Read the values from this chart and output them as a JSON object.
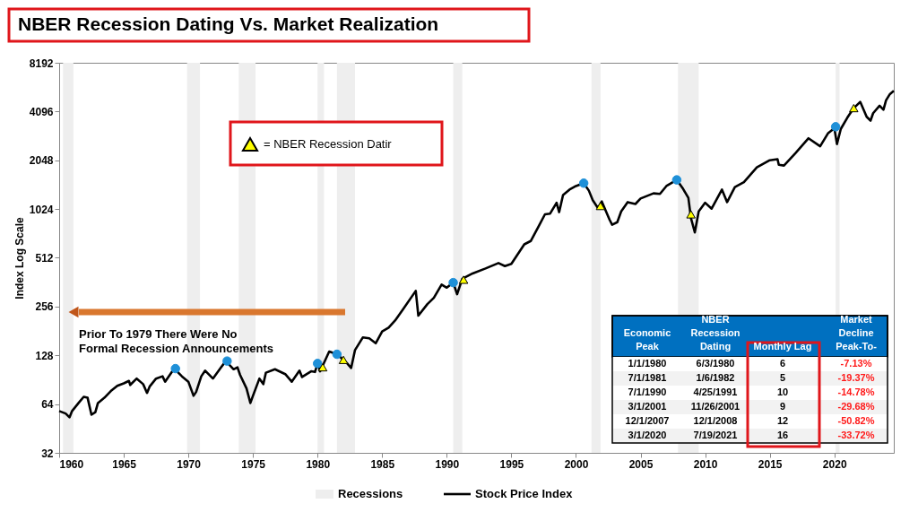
{
  "chart_data": {
    "type": "line",
    "title": "NBER Recession Dating Vs. Market Realization",
    "ylabel": "Index Log Scale",
    "log": "y",
    "grid": false,
    "legend": "bottom",
    "xlim": [
      1960,
      2024.6
    ],
    "xticks": [
      1960,
      1965,
      1970,
      1975,
      1980,
      1985,
      1990,
      1995,
      2000,
      2005,
      2010,
      2015,
      2020
    ],
    "ylim": [
      32,
      8192
    ],
    "yticks": [
      32,
      64,
      128,
      256,
      512,
      1024,
      2048,
      4096,
      8192
    ],
    "bands": [
      {
        "axis": "x",
        "from": 1960.3,
        "to": 1961.1,
        "label": "Recessions",
        "color": "#eeeeee"
      },
      {
        "axis": "x",
        "from": 1969.9,
        "to": 1970.9,
        "color": "#eeeeee"
      },
      {
        "axis": "x",
        "from": 1973.9,
        "to": 1975.2,
        "color": "#eeeeee"
      },
      {
        "axis": "x",
        "from": 1980.0,
        "to": 1980.5,
        "color": "#eeeeee"
      },
      {
        "axis": "x",
        "from": 1981.5,
        "to": 1982.9,
        "color": "#eeeeee"
      },
      {
        "axis": "x",
        "from": 1990.5,
        "to": 1991.2,
        "color": "#eeeeee"
      },
      {
        "axis": "x",
        "from": 2001.2,
        "to": 2001.9,
        "color": "#eeeeee"
      },
      {
        "axis": "x",
        "from": 2007.9,
        "to": 2009.5,
        "color": "#eeeeee"
      },
      {
        "axis": "x",
        "from": 2020.1,
        "to": 2020.4,
        "color": "#eeeeee"
      }
    ],
    "series": [
      {
        "name": "Stock Price Index",
        "color": "#000000",
        "marker": "none",
        "line_style": "solid",
        "x": [
          1960.0,
          1960.5,
          1960.8,
          1961.0,
          1961.5,
          1961.9,
          1962.2,
          1962.5,
          1962.8,
          1963.0,
          1963.5,
          1964.0,
          1964.5,
          1965.0,
          1965.4,
          1965.5,
          1966.0,
          1966.5,
          1966.8,
          1967.0,
          1967.5,
          1968.0,
          1968.2,
          1968.9,
          1969.5,
          1970.0,
          1970.4,
          1970.6,
          1971.0,
          1971.3,
          1971.9,
          1972.5,
          1972.9,
          1973.5,
          1973.8,
          1974.0,
          1974.5,
          1974.8,
          1975.0,
          1975.5,
          1975.8,
          1976.0,
          1976.7,
          1977.5,
          1978.0,
          1978.6,
          1978.8,
          1979.5,
          1979.8,
          1980.0,
          1980.2,
          1980.9,
          1981.5,
          1981.9,
          1982.3,
          1982.6,
          1982.9,
          1983.5,
          1984.0,
          1984.5,
          1985.0,
          1985.5,
          1986.0,
          1986.6,
          1987.6,
          1987.8,
          1988.5,
          1989.0,
          1989.6,
          1990.0,
          1990.5,
          1990.8,
          1991.2,
          1992.0,
          1993.0,
          1994.0,
          1994.5,
          1995.0,
          1996.0,
          1996.5,
          1997.0,
          1997.6,
          1998.0,
          1998.5,
          1998.7,
          1999.0,
          1999.5,
          2000.0,
          2000.6,
          2001.0,
          2001.3,
          2001.7,
          2002.0,
          2002.6,
          2002.8,
          2003.2,
          2003.5,
          2004.0,
          2004.6,
          2005.0,
          2006.0,
          2006.5,
          2007.0,
          2007.8,
          2008.3,
          2008.7,
          2008.9,
          2009.2,
          2009.5,
          2010.0,
          2010.5,
          2011.3,
          2011.7,
          2012.3,
          2013.0,
          2014.0,
          2015.0,
          2015.6,
          2015.7,
          2016.1,
          2017.0,
          2018.0,
          2018.9,
          2019.5,
          2020.0,
          2020.2,
          2020.5,
          2021.0,
          2021.5,
          2022.0,
          2022.5,
          2022.8,
          2023.0,
          2023.5,
          2023.8,
          2024.0,
          2024.3,
          2024.6
        ],
        "values": [
          58,
          56,
          53,
          58,
          65,
          71,
          70,
          55,
          57,
          65,
          70,
          77,
          83,
          86,
          89,
          84,
          92,
          85,
          75,
          82,
          92,
          95,
          88,
          106,
          95,
          88,
          72,
          76,
          95,
          103,
          92,
          107,
          118,
          105,
          108,
          97,
          80,
          65,
          72,
          92,
          85,
          100,
          105,
          98,
          88,
          103,
          94,
          102,
          101,
          114,
          102,
          135,
          130,
          122,
          114,
          107,
          138,
          165,
          163,
          152,
          180,
          190,
          210,
          245,
          320,
          225,
          265,
          290,
          350,
          335,
          360,
          305,
          380,
          410,
          440,
          475,
          455,
          470,
          620,
          650,
          770,
          950,
          960,
          1120,
          980,
          1250,
          1350,
          1420,
          1480,
          1330,
          1160,
          1040,
          1140,
          880,
          820,
          850,
          990,
          1130,
          1100,
          1190,
          1280,
          1270,
          1420,
          1550,
          1360,
          1200,
          900,
          735,
          990,
          1120,
          1030,
          1350,
          1130,
          1400,
          1500,
          1850,
          2050,
          2080,
          1920,
          1900,
          2270,
          2800,
          2500,
          3000,
          3230,
          2580,
          3200,
          3750,
          4300,
          4700,
          3800,
          3600,
          4000,
          4450,
          4200,
          4800,
          5250,
          5500
        ]
      },
      {
        "type": "scatter",
        "color": "#1e90d8",
        "marker": "circle",
        "x": [
          1969.0,
          1973.0,
          1980.0,
          1981.5,
          1990.5,
          2000.6,
          2007.8,
          2020.1
        ],
        "values": [
          106,
          118,
          114,
          130,
          360,
          1480,
          1550,
          3300
        ]
      },
      {
        "name": "= NBER Recession Datir",
        "type": "scatter",
        "color": "#ffff00",
        "marker": "triangle",
        "x": [
          1980.4,
          1982.0,
          1991.3,
          2001.9,
          2008.9,
          2021.5
        ],
        "values": [
          108,
          120,
          375,
          1070,
          950,
          4300
        ]
      }
    ],
    "annotations": [
      "Prior To 1979 There Were No Formal Recession Announcements",
      "Economic Peak",
      "NBER Recession Dating",
      "Monthly Lag",
      "Market Decline Peak-To-",
      "1/1/1980",
      "6/3/1980",
      "6",
      "-7.13%",
      "7/1/1981",
      "1/6/1982",
      "5",
      "-19.37%",
      "7/1/1990",
      "4/25/1991",
      "10",
      "-14.78%",
      "3/1/2001",
      "11/26/2001",
      "9",
      "-29.68%",
      "12/1/2007",
      "12/1/2008",
      "12",
      "-50.82%",
      "3/1/2020",
      "7/19/2021",
      "16",
      "-33.72%"
    ]
  }
}
